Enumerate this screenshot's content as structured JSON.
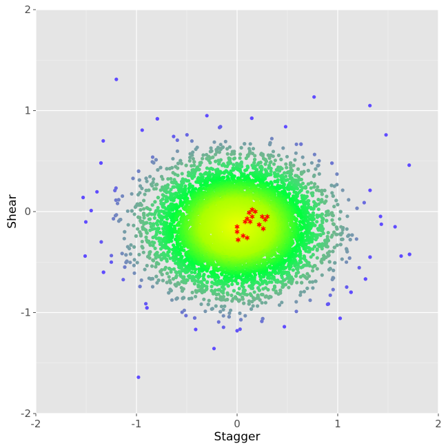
{
  "chart_data": {
    "type": "scatter",
    "title": "",
    "xlabel": "Stagger",
    "ylabel": "Shear",
    "xlim": [
      -2,
      2
    ],
    "ylim": [
      -2,
      2
    ],
    "x_ticks": [
      -2,
      -1,
      0,
      1,
      2
    ],
    "y_ticks": [
      -2,
      -1,
      0,
      1,
      2
    ],
    "x_tick_labels": [
      "-2",
      "-1",
      "0",
      "1",
      "2"
    ],
    "y_tick_labels": [
      "-2",
      "-1",
      "0",
      "1",
      "2"
    ],
    "grid": true,
    "legend": "none",
    "background_color": "#e5e5e5",
    "grid_color": "#ffffff",
    "series": [
      {
        "marker": "circle",
        "color_scale": "density: blue (sparse) to green to yellow (dense)",
        "center": [
          0.0,
          -0.15
        ],
        "spread": [
          0.4,
          0.3
        ],
        "outlier_points": [
          [
            -1.2,
            1.31
          ],
          [
            1.32,
            1.05
          ],
          [
            -1.33,
            0.7
          ],
          [
            -0.3,
            0.95
          ],
          [
            1.71,
            0.46
          ],
          [
            1.48,
            0.76
          ],
          [
            -1.53,
            0.14
          ],
          [
            -1.51,
            -0.44
          ],
          [
            -0.98,
            -1.64
          ],
          [
            0.0,
            -1.18
          ],
          [
            0.47,
            -1.14
          ],
          [
            1.63,
            -0.44
          ],
          [
            1.57,
            -0.15
          ],
          [
            -1.45,
            0.01
          ],
          [
            -1.35,
            -0.3
          ],
          [
            -1.25,
            -0.5
          ]
        ]
      },
      {
        "marker": "asterisk",
        "color": "#ff0000",
        "points": [
          [
            0.15,
            0.02
          ],
          [
            0.18,
            0.0
          ],
          [
            0.12,
            -0.01
          ],
          [
            0.1,
            -0.07
          ],
          [
            0.13,
            -0.1
          ],
          [
            0.08,
            -0.1
          ],
          [
            0.25,
            -0.05
          ],
          [
            0.3,
            -0.05
          ],
          [
            0.28,
            -0.08
          ],
          [
            0.22,
            -0.13
          ],
          [
            0.26,
            -0.17
          ],
          [
            0.0,
            -0.15
          ],
          [
            0.06,
            -0.24
          ],
          [
            0.1,
            -0.26
          ],
          [
            0.0,
            -0.2
          ],
          [
            0.01,
            -0.28
          ],
          [
            0.15,
            -0.05
          ]
        ]
      }
    ]
  }
}
